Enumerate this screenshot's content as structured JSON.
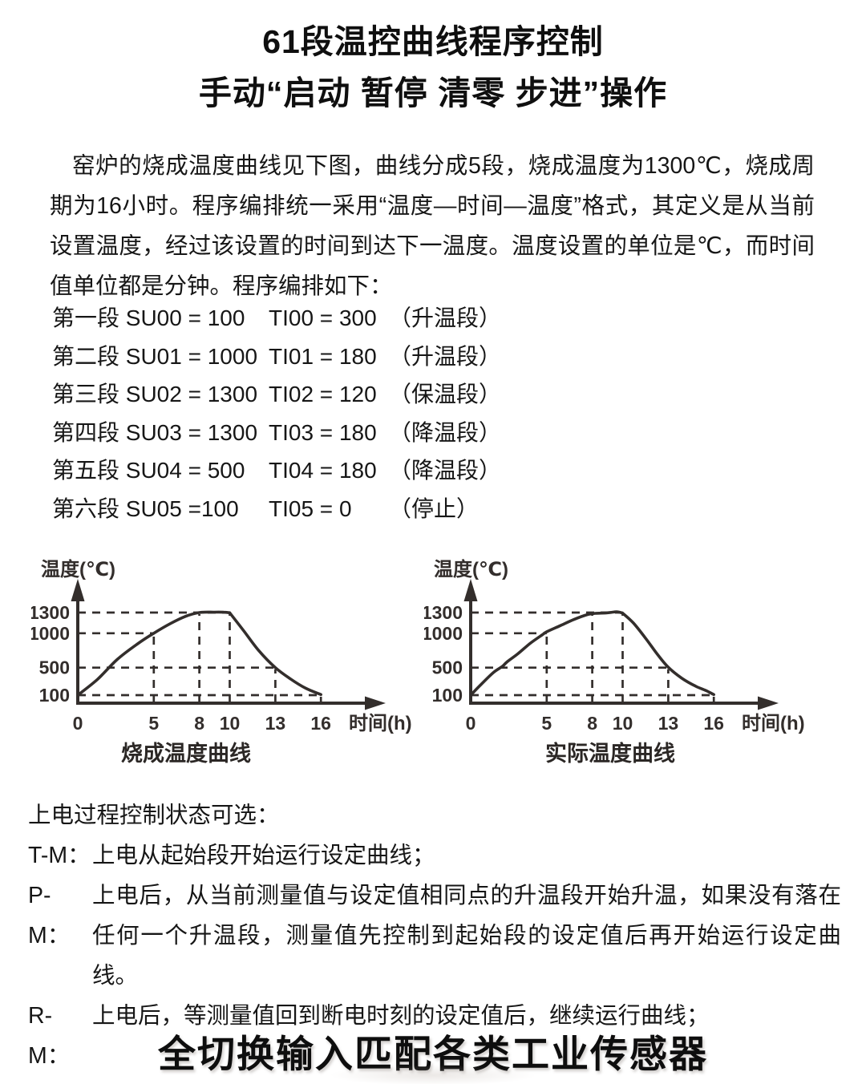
{
  "colors": {
    "background": "#ffffff",
    "text": "#161616",
    "chart_ink": "#332e2c"
  },
  "title": "61段温控曲线程序控制",
  "subtitle": "手动“启动 暂停 清零 步进”操作",
  "intro": "窑炉的烧成温度曲线见下图，曲线分成5段，烧成温度为1300℃，烧成周期为16小时。程序编排统一采用“温度—时间—温度”格式，其定义是从当前设置温度，经过该设置的时间到达下一温度。温度设置的单位是℃，而时间值单位都是分钟。程序编排如下：",
  "program": {
    "rows": [
      {
        "seg": "第一段",
        "su": "SU00 = 100",
        "ti": "TI00 = 300",
        "note": "（升温段）"
      },
      {
        "seg": "第二段",
        "su": "SU01 = 1000",
        "ti": "TI01 = 180",
        "note": "（升温段）"
      },
      {
        "seg": "第三段",
        "su": "SU02 = 1300",
        "ti": "TI02 = 120",
        "note": "（保温段）"
      },
      {
        "seg": "第四段",
        "su": "SU03 = 1300",
        "ti": "TI03 = 180",
        "note": "（降温段）"
      },
      {
        "seg": "第五段",
        "su": "SU04 = 500",
        "ti": "TI04 = 180",
        "note": "（降温段）"
      },
      {
        "seg": "第六段",
        "su": "SU05 =100",
        "ti": "TI05 = 0",
        "note": "（停止）"
      }
    ]
  },
  "chart_data": [
    {
      "type": "line",
      "title": "烧成温度曲线",
      "xlabel": "时间(h)",
      "ylabel": "温度(℃)",
      "xticks": [
        0,
        5,
        8,
        10,
        13,
        16
      ],
      "yticks": [
        1300,
        1000,
        500,
        100
      ],
      "xlim": [
        0,
        19
      ],
      "ylim": [
        0,
        1550
      ],
      "grid": "dashed-reference-lines",
      "legend": "none",
      "key_points": [
        [
          0,
          100
        ],
        [
          5,
          1000
        ],
        [
          8,
          1300
        ],
        [
          10,
          1300
        ],
        [
          13,
          500
        ],
        [
          16,
          100
        ]
      ],
      "curve": [
        [
          0,
          100
        ],
        [
          1.3,
          330
        ],
        [
          2.6,
          620
        ],
        [
          3.9,
          840
        ],
        [
          5,
          1000
        ],
        [
          6.1,
          1140
        ],
        [
          7.1,
          1245
        ],
        [
          8,
          1300
        ],
        [
          9,
          1306
        ],
        [
          9.6,
          1305
        ],
        [
          10,
          1297
        ],
        [
          10.9,
          1040
        ],
        [
          11.9,
          750
        ],
        [
          13,
          500
        ],
        [
          14,
          335
        ],
        [
          15,
          200
        ],
        [
          16,
          108
        ]
      ],
      "h_refs": [
        {
          "y": 1300,
          "to_x": 10
        },
        {
          "y": 1000,
          "to_x": 5
        },
        {
          "y": 500,
          "to_x": 13
        },
        {
          "y": 100,
          "to_x": 16
        }
      ],
      "v_refs": [
        {
          "x": 5,
          "to_y": 1000
        },
        {
          "x": 8,
          "to_y": 1300
        },
        {
          "x": 10,
          "to_y": 1300
        },
        {
          "x": 13,
          "to_y": 500
        },
        {
          "x": 16,
          "to_y": 100
        }
      ]
    },
    {
      "type": "line",
      "title": "实际温度曲线",
      "xlabel": "时间(h)",
      "ylabel": "温度(℃)",
      "xticks": [
        0,
        5,
        8,
        10,
        13,
        16
      ],
      "yticks": [
        1300,
        1000,
        500,
        100
      ],
      "xlim": [
        0,
        19
      ],
      "ylim": [
        0,
        1550
      ],
      "grid": "dashed-reference-lines",
      "legend": "none",
      "key_points": [
        [
          0,
          100
        ],
        [
          5,
          1000
        ],
        [
          8,
          1300
        ],
        [
          10,
          1300
        ],
        [
          13,
          500
        ],
        [
          16,
          100
        ]
      ],
      "curve": [
        [
          0,
          100
        ],
        [
          0.7,
          260
        ],
        [
          1.5,
          430
        ],
        [
          2.1,
          520
        ],
        [
          2.4,
          585
        ],
        [
          3.1,
          700
        ],
        [
          3.9,
          850
        ],
        [
          4.7,
          975
        ],
        [
          5,
          1020
        ],
        [
          5.9,
          1110
        ],
        [
          6.8,
          1200
        ],
        [
          7.6,
          1265
        ],
        [
          8.2,
          1288
        ],
        [
          9,
          1296
        ],
        [
          9.6,
          1310
        ],
        [
          10,
          1292
        ],
        [
          10.7,
          1150
        ],
        [
          11.5,
          930
        ],
        [
          12.3,
          690
        ],
        [
          13,
          505
        ],
        [
          13.9,
          345
        ],
        [
          14.8,
          230
        ],
        [
          15.5,
          165
        ],
        [
          16,
          108
        ]
      ],
      "h_refs": [
        {
          "y": 1300,
          "to_x": 10
        },
        {
          "y": 1000,
          "to_x": 5
        },
        {
          "y": 500,
          "to_x": 13
        },
        {
          "y": 100,
          "to_x": 16
        }
      ],
      "v_refs": [
        {
          "x": 5,
          "to_y": 1000
        },
        {
          "x": 8,
          "to_y": 1300
        },
        {
          "x": 10,
          "to_y": 1300
        },
        {
          "x": 13,
          "to_y": 500
        },
        {
          "x": 16,
          "to_y": 100
        }
      ]
    }
  ],
  "power_on": {
    "heading": "上电过程控制状态可选：",
    "items": [
      {
        "label": "T-M：",
        "text": "上电从起始段开始运行设定曲线；"
      },
      {
        "label": "P-M：",
        "text": "上电后，从当前测量值与设定值相同点的升温段开始升温，如果没有落在任何一个升温段，测量值先控制到起始段的设定值后再开始运行设定曲线。"
      },
      {
        "label": "R-M：",
        "text": "上电后，等测量值回到断电时刻的设定值后，继续运行曲线；"
      }
    ]
  },
  "bottom_title": "全切换输入匹配各类工业传感器"
}
